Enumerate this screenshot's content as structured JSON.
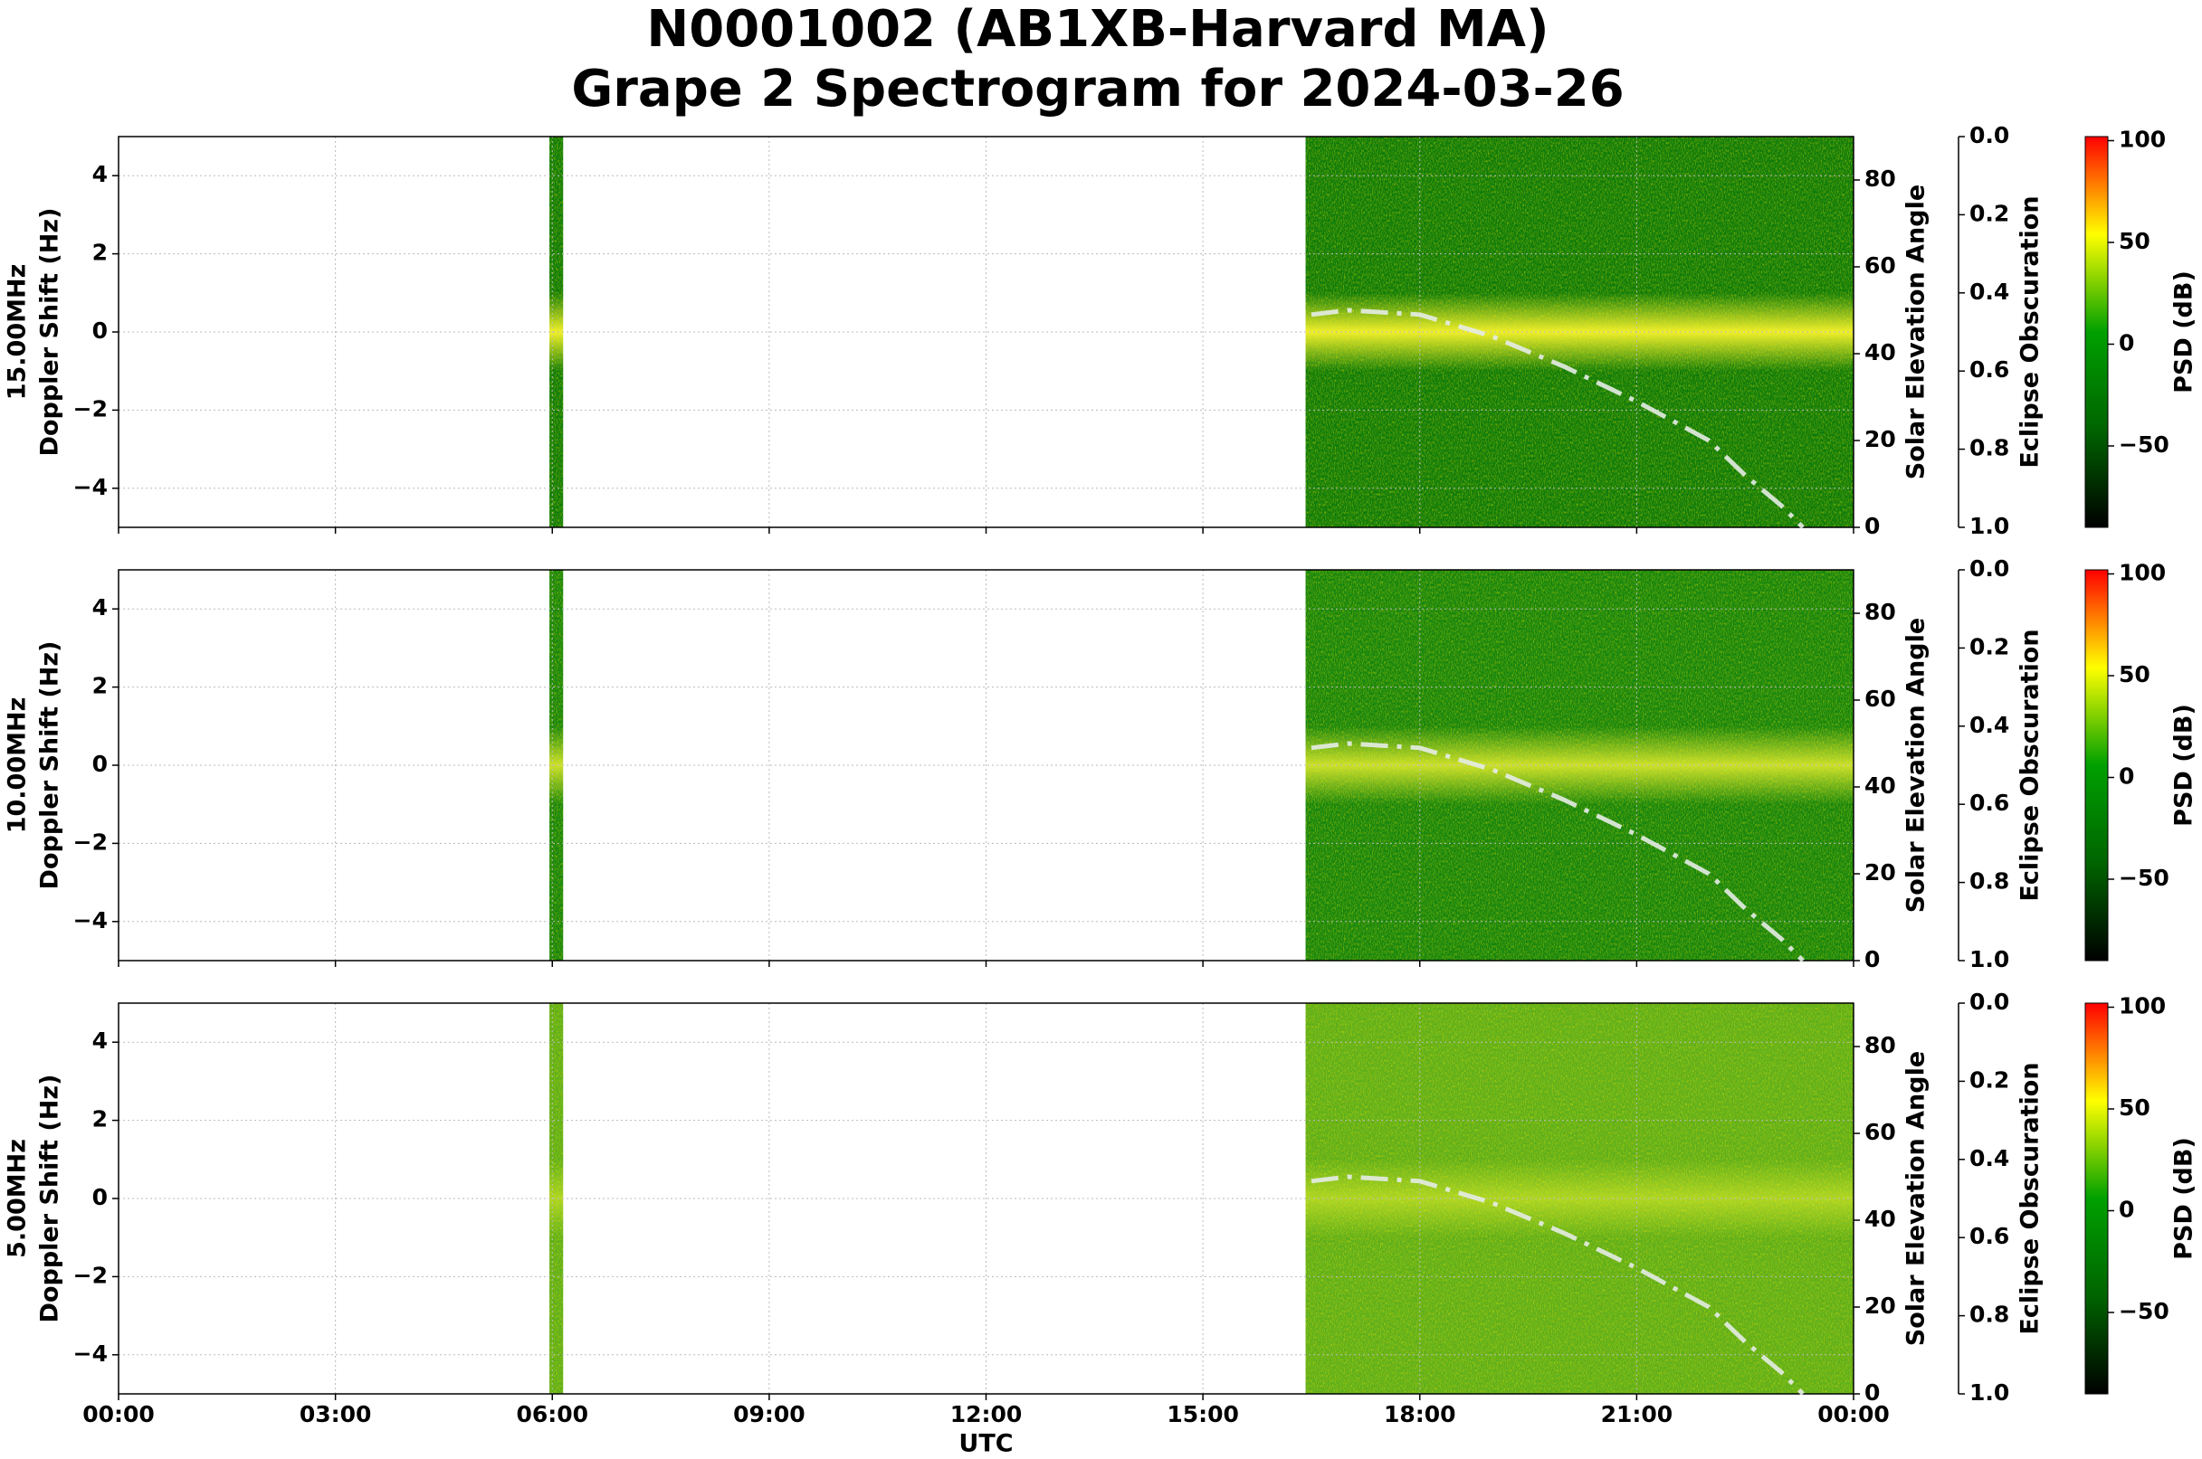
{
  "title": "N0001002 (AB1XB-Harvard MA)",
  "subtitle": "Grape 2 Spectrogram for 2024-03-26",
  "colormap": [
    "#000000",
    "#006400",
    "#00a000",
    "#ffff00",
    "#ff0000"
  ],
  "chart_data": [
    {
      "type": "spectrogram",
      "frequency_label": "15.00MHz",
      "ylabel": "Doppler Shift (Hz)",
      "y2label": "Solar Elevation Angle",
      "y3label": "Eclipse Obscuration",
      "colorbar_label": "PSD (dB)",
      "xlim": [
        0,
        24
      ],
      "xticks": [
        0,
        3,
        6,
        9,
        12,
        15,
        18,
        21,
        24
      ],
      "ylim": [
        -5,
        5
      ],
      "yticks": [
        {
          "value": -4,
          "label": "−4"
        },
        {
          "value": -2,
          "label": "−2"
        },
        0,
        2,
        4
      ],
      "y2lim": [
        0,
        90
      ],
      "y2ticks": [
        0,
        20,
        40,
        60,
        80
      ],
      "y3lim": [
        1,
        0
      ],
      "y3ticks": [
        {
          "value": 0,
          "label": "0.0"
        },
        {
          "value": 0.2,
          "label": "0.2"
        },
        {
          "value": 0.4,
          "label": "0.4"
        },
        {
          "value": 0.6,
          "label": "0.6"
        },
        {
          "value": 0.8,
          "label": "0.8"
        },
        {
          "value": 1,
          "label": "1.0"
        }
      ],
      "clim": [
        -90,
        102
      ],
      "cticks": [
        {
          "value": -50,
          "label": "−50"
        },
        0,
        50,
        100
      ],
      "grid": true,
      "spectrum_spans": [
        [
          5.96,
          6.15
        ],
        [
          16.42,
          24
        ]
      ],
      "spectrum_color": "#0b7a0b",
      "band_color": "#f0f030",
      "series": [
        {
          "name": "Solar Elevation Angle",
          "color": "#e6ece6",
          "axis": "y2",
          "x": [
            16.5,
            17,
            18,
            19,
            20,
            21,
            22,
            22.5,
            23,
            23.3
          ],
          "values": [
            49,
            50,
            49,
            44,
            37,
            29,
            20,
            12,
            5,
            0
          ]
        }
      ]
    },
    {
      "type": "spectrogram",
      "frequency_label": "10.00MHz",
      "ylabel": "Doppler Shift (Hz)",
      "y2label": "Solar Elevation Angle",
      "y3label": "Eclipse Obscuration",
      "colorbar_label": "PSD (dB)",
      "xlim": [
        0,
        24
      ],
      "xticks": [
        0,
        3,
        6,
        9,
        12,
        15,
        18,
        21,
        24
      ],
      "ylim": [
        -5,
        5
      ],
      "yticks": [
        {
          "value": -4,
          "label": "−4"
        },
        {
          "value": -2,
          "label": "−2"
        },
        0,
        2,
        4
      ],
      "y2lim": [
        0,
        90
      ],
      "y2ticks": [
        0,
        20,
        40,
        60,
        80
      ],
      "y3lim": [
        1,
        0
      ],
      "y3ticks": [
        {
          "value": 0,
          "label": "0.0"
        },
        {
          "value": 0.2,
          "label": "0.2"
        },
        {
          "value": 0.4,
          "label": "0.4"
        },
        {
          "value": 0.6,
          "label": "0.6"
        },
        {
          "value": 0.8,
          "label": "0.8"
        },
        {
          "value": 1,
          "label": "1.0"
        }
      ],
      "clim": [
        -90,
        102
      ],
      "cticks": [
        {
          "value": -50,
          "label": "−50"
        },
        0,
        50,
        100
      ],
      "grid": true,
      "spectrum_spans": [
        [
          5.96,
          6.15
        ],
        [
          16.42,
          24
        ]
      ],
      "spectrum_color": "#13840f",
      "band_color": "#c8e030",
      "series": [
        {
          "name": "Solar Elevation Angle",
          "color": "#e6ece6",
          "axis": "y2",
          "x": [
            16.5,
            17,
            18,
            19,
            20,
            21,
            22,
            22.5,
            23,
            23.3
          ],
          "values": [
            49,
            50,
            49,
            44,
            37,
            29,
            20,
            12,
            5,
            0
          ]
        }
      ]
    },
    {
      "type": "spectrogram",
      "frequency_label": "5.00MHz",
      "ylabel": "Doppler Shift (Hz)",
      "y2label": "Solar Elevation Angle",
      "y3label": "Eclipse Obscuration",
      "colorbar_label": "PSD (dB)",
      "xlabel": "UTC",
      "xlim": [
        0,
        24
      ],
      "xticks": [
        {
          "value": 0,
          "label": "00:00"
        },
        {
          "value": 3,
          "label": "03:00"
        },
        {
          "value": 6,
          "label": "06:00"
        },
        {
          "value": 9,
          "label": "09:00"
        },
        {
          "value": 12,
          "label": "12:00"
        },
        {
          "value": 15,
          "label": "15:00"
        },
        {
          "value": 18,
          "label": "18:00"
        },
        {
          "value": 21,
          "label": "21:00"
        },
        {
          "value": 24,
          "label": "00:00"
        }
      ],
      "ylim": [
        -5,
        5
      ],
      "yticks": [
        {
          "value": -4,
          "label": "−4"
        },
        {
          "value": -2,
          "label": "−2"
        },
        0,
        2,
        4
      ],
      "y2lim": [
        0,
        90
      ],
      "y2ticks": [
        0,
        20,
        40,
        60,
        80
      ],
      "y3lim": [
        1,
        0
      ],
      "y3ticks": [
        {
          "value": 0,
          "label": "0.0"
        },
        {
          "value": 0.2,
          "label": "0.2"
        },
        {
          "value": 0.4,
          "label": "0.4"
        },
        {
          "value": 0.6,
          "label": "0.6"
        },
        {
          "value": 0.8,
          "label": "0.8"
        },
        {
          "value": 1,
          "label": "1.0"
        }
      ],
      "clim": [
        -90,
        102
      ],
      "cticks": [
        {
          "value": -50,
          "label": "−50"
        },
        0,
        50,
        100
      ],
      "grid": true,
      "spectrum_spans": [
        [
          5.96,
          6.15
        ],
        [
          16.42,
          24
        ]
      ],
      "spectrum_color": "#5cae1c",
      "band_color": "#a8d428",
      "series": [
        {
          "name": "Solar Elevation Angle",
          "color": "#e6ece6",
          "axis": "y2",
          "x": [
            16.5,
            17,
            18,
            19,
            20,
            21,
            22,
            22.5,
            23,
            23.3
          ],
          "values": [
            49,
            50,
            49,
            44,
            37,
            29,
            20,
            12,
            5,
            0
          ]
        }
      ]
    }
  ]
}
